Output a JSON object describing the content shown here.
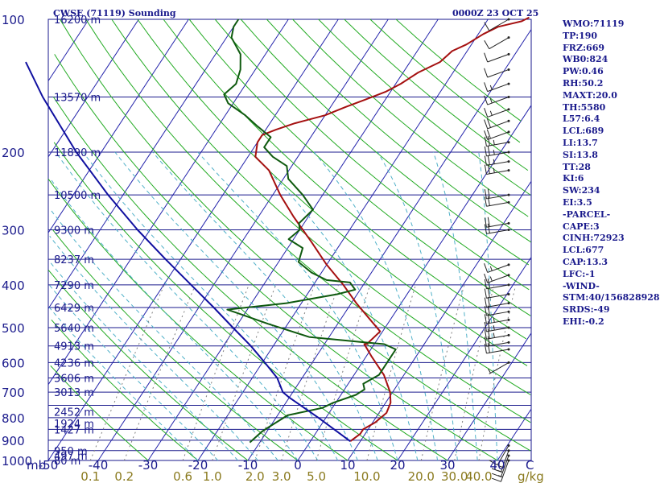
{
  "header": {
    "station": "CWSE (71119) Sounding",
    "timestamp": "0000Z 23 OCT 25"
  },
  "indices": [
    "WMO:71119",
    "TP:190",
    "FRZ:669",
    "WB0:824",
    "PW:0.46",
    "RH:50.2",
    "MAXT:20.0",
    "TH:5580",
    "L57:6.4",
    "LCL:689",
    "LI:13.7",
    "SI:13.8",
    "TT:28",
    "KI:6",
    "SW:234",
    "EI:3.5",
    "-PARCEL-",
    "CAPE:3",
    "CINH:72923",
    "LCL:677",
    "CAP:13.3",
    "LFC:-1",
    "-WIND-",
    "STM:40/156828928",
    "SRDS:-49",
    "EHI:-0.2"
  ],
  "colors": {
    "frame": "#1a1a8c",
    "isobar": "#1a1a8c",
    "isotherm": "#2222aa",
    "dry_adiabat": "#22aa22",
    "moist_adiabat": "#4fb0c8",
    "mixing_ratio": "#808080",
    "temperature": "#a51010",
    "dewpoint": "#0f5a0f",
    "parcel": "#1010a0",
    "wind": "#222222"
  },
  "chart_data": {
    "type": "line",
    "title": "CWSE (71119) Sounding",
    "subtitle": "0000Z 23 OCT 25",
    "xlabel": "C",
    "ylabel": "mb",
    "xlim": [
      -50,
      50
    ],
    "ylim": [
      1000,
      100
    ],
    "y_scale": "log-pressure",
    "skew": "skew-T",
    "y_ticks": [
      {
        "p": 100,
        "label": "100"
      },
      {
        "p": 200,
        "label": "200"
      },
      {
        "p": 300,
        "label": "300"
      },
      {
        "p": 400,
        "label": "400"
      },
      {
        "p": 500,
        "label": "500"
      },
      {
        "p": 600,
        "label": "600"
      },
      {
        "p": 700,
        "label": "700"
      },
      {
        "p": 800,
        "label": "800"
      },
      {
        "p": 900,
        "label": "900"
      },
      {
        "p": 1000,
        "label": "1000"
      }
    ],
    "x_ticks": [
      -50,
      -40,
      -30,
      -20,
      -10,
      0,
      10,
      20,
      30,
      40
    ],
    "x_tick_labels": [
      "-50",
      "-40",
      "-30",
      "-20",
      "-10",
      "0",
      "10",
      "20",
      "30",
      "40"
    ],
    "mb_label": "mb",
    "mixing_ratio_labels": [
      {
        "w": 0.1,
        "label": "0.1"
      },
      {
        "w": 0.2,
        "label": "0.2"
      },
      {
        "w": 0.6,
        "label": "0.6"
      },
      {
        "w": 1.0,
        "label": "1.0"
      },
      {
        "w": 2.0,
        "label": "2.0"
      },
      {
        "w": 3.0,
        "label": "3.0"
      },
      {
        "w": 5.0,
        "label": "5.0"
      },
      {
        "w": 10.0,
        "label": "10.0"
      },
      {
        "w": 20.0,
        "label": "20.0"
      },
      {
        "w": 30.0,
        "label": "30.0"
      },
      {
        "w": 40.0,
        "label": "40.0"
      }
    ],
    "mixing_ratio_unit": "g/kg",
    "heights": [
      {
        "p": 1000,
        "label": "80 m"
      },
      {
        "p": 975,
        "label": "497 m"
      },
      {
        "p": 950,
        "label": "950 m"
      },
      {
        "p": 850,
        "label": "1427 m"
      },
      {
        "p": 825,
        "label": "1924 m"
      },
      {
        "p": 775,
        "label": "2452 m"
      },
      {
        "p": 700,
        "label": "3013 m"
      },
      {
        "p": 650,
        "label": "3606 m"
      },
      {
        "p": 600,
        "label": "4236 m"
      },
      {
        "p": 550,
        "label": "4913 m"
      },
      {
        "p": 500,
        "label": "5640 m"
      },
      {
        "p": 450,
        "label": "6429 m"
      },
      {
        "p": 400,
        "label": "7290 m"
      },
      {
        "p": 350,
        "label": "8237 m"
      },
      {
        "p": 300,
        "label": "9300 m"
      },
      {
        "p": 250,
        "label": "10500 m"
      },
      {
        "p": 200,
        "label": "11890 m"
      },
      {
        "p": 150,
        "label": "13570 m"
      },
      {
        "p": 100,
        "label": "16200 m"
      }
    ],
    "series": [
      {
        "key": "temperature",
        "points": [
          [
            905,
            8.0
          ],
          [
            870,
            9.0
          ],
          [
            850,
            9.0
          ],
          [
            820,
            10.5
          ],
          [
            780,
            11.5
          ],
          [
            740,
            11.0
          ],
          [
            700,
            9.5
          ],
          [
            640,
            6.0
          ],
          [
            580,
            1.0
          ],
          [
            545,
            -2.0
          ],
          [
            545,
            -1.5
          ],
          [
            510,
            -0.5
          ],
          [
            480,
            -4.0
          ],
          [
            440,
            -9.0
          ],
          [
            400,
            -14.0
          ],
          [
            360,
            -20.0
          ],
          [
            320,
            -26.0
          ],
          [
            280,
            -33.0
          ],
          [
            250,
            -38.5
          ],
          [
            220,
            -44.0
          ],
          [
            205,
            -48.5
          ],
          [
            190,
            -50.0
          ],
          [
            183,
            -50.0
          ],
          [
            178,
            -48.0
          ],
          [
            172,
            -45.0
          ],
          [
            165,
            -40.0
          ],
          [
            158,
            -37.0
          ],
          [
            152,
            -34.0
          ],
          [
            146,
            -31.0
          ],
          [
            140,
            -29.0
          ],
          [
            132,
            -27.0
          ],
          [
            125,
            -24.0
          ],
          [
            118,
            -23.0
          ],
          [
            114,
            -21.0
          ],
          [
            108,
            -19.0
          ],
          [
            104,
            -17.0
          ],
          [
            101,
            -13.0
          ],
          [
            99,
            -12.0
          ]
        ]
      },
      {
        "key": "dewpoint",
        "points": [
          [
            910,
            -12.0
          ],
          [
            860,
            -11.0
          ],
          [
            835,
            -10.0
          ],
          [
            790,
            -8.0
          ],
          [
            760,
            -2.0
          ],
          [
            740,
            -0.5
          ],
          [
            710,
            3.0
          ],
          [
            690,
            4.0
          ],
          [
            670,
            3.0
          ],
          [
            640,
            5.0
          ],
          [
            600,
            5.0
          ],
          [
            560,
            5.0
          ],
          [
            545,
            2.0
          ],
          [
            540,
            -2.0
          ],
          [
            525,
            -14.0
          ],
          [
            490,
            -24.0
          ],
          [
            465,
            -31.0
          ],
          [
            455,
            -34.0
          ],
          [
            440,
            -23.0
          ],
          [
            420,
            -14.0
          ],
          [
            410,
            -11.0
          ],
          [
            395,
            -13.0
          ],
          [
            390,
            -18.0
          ],
          [
            375,
            -22.0
          ],
          [
            355,
            -26.0
          ],
          [
            330,
            -27.0
          ],
          [
            315,
            -31.0
          ],
          [
            300,
            -30.0
          ],
          [
            290,
            -31.0
          ],
          [
            270,
            -30.0
          ],
          [
            250,
            -34.0
          ],
          [
            230,
            -39.0
          ],
          [
            215,
            -41.0
          ],
          [
            205,
            -45.0
          ],
          [
            195,
            -48.0
          ],
          [
            185,
            -48.0
          ],
          [
            175,
            -52.0
          ],
          [
            165,
            -56.0
          ],
          [
            155,
            -61.0
          ],
          [
            148,
            -63.0
          ],
          [
            140,
            -62.0
          ],
          [
            130,
            -63.0
          ],
          [
            120,
            -65.0
          ],
          [
            110,
            -69.0
          ],
          [
            104,
            -70.0
          ],
          [
            100,
            -70.0
          ]
        ]
      },
      {
        "key": "parcel",
        "points": [
          [
            905,
            8.0
          ],
          [
            800,
            -1.5
          ],
          [
            720,
            -10.0
          ],
          [
            700,
            -12.0
          ],
          [
            650,
            -15.0
          ],
          [
            600,
            -19.5
          ],
          [
            550,
            -24.5
          ],
          [
            500,
            -30.5
          ],
          [
            450,
            -37.0
          ],
          [
            400,
            -44.5
          ],
          [
            350,
            -53.0
          ],
          [
            300,
            -62.5
          ],
          [
            250,
            -73.0
          ],
          [
            200,
            -85.0
          ],
          [
            150,
            -99.0
          ],
          [
            125,
            -107.0
          ]
        ]
      }
    ],
    "wind_barbs": [
      {
        "p": 1000,
        "dir": 200,
        "kt": 15
      },
      {
        "p": 975,
        "dir": 200,
        "kt": 15
      },
      {
        "p": 950,
        "dir": 200,
        "kt": 15
      },
      {
        "p": 925,
        "dir": 210,
        "kt": 10
      },
      {
        "p": 600,
        "dir": 240,
        "kt": 5
      },
      {
        "p": 560,
        "dir": 260,
        "kt": 20
      },
      {
        "p": 540,
        "dir": 260,
        "kt": 20
      },
      {
        "p": 520,
        "dir": 260,
        "kt": 25
      },
      {
        "p": 500,
        "dir": 260,
        "kt": 25
      },
      {
        "p": 480,
        "dir": 260,
        "kt": 25
      },
      {
        "p": 460,
        "dir": 260,
        "kt": 20
      },
      {
        "p": 440,
        "dir": 260,
        "kt": 20
      },
      {
        "p": 420,
        "dir": 260,
        "kt": 20
      },
      {
        "p": 400,
        "dir": 260,
        "kt": 20
      },
      {
        "p": 380,
        "dir": 250,
        "kt": 15
      },
      {
        "p": 360,
        "dir": 250,
        "kt": 15
      },
      {
        "p": 300,
        "dir": 260,
        "kt": 20
      },
      {
        "p": 290,
        "dir": 260,
        "kt": 20
      },
      {
        "p": 260,
        "dir": 260,
        "kt": 20
      },
      {
        "p": 250,
        "dir": 260,
        "kt": 20
      },
      {
        "p": 220,
        "dir": 260,
        "kt": 25
      },
      {
        "p": 210,
        "dir": 260,
        "kt": 25
      },
      {
        "p": 200,
        "dir": 260,
        "kt": 25
      },
      {
        "p": 190,
        "dir": 260,
        "kt": 25
      },
      {
        "p": 180,
        "dir": 250,
        "kt": 20
      },
      {
        "p": 170,
        "dir": 250,
        "kt": 20
      },
      {
        "p": 160,
        "dir": 250,
        "kt": 15
      },
      {
        "p": 150,
        "dir": 250,
        "kt": 15
      },
      {
        "p": 140,
        "dir": 250,
        "kt": 15
      },
      {
        "p": 130,
        "dir": 250,
        "kt": 10
      },
      {
        "p": 120,
        "dir": 250,
        "kt": 10
      },
      {
        "p": 110,
        "dir": 240,
        "kt": 10
      },
      {
        "p": 100,
        "dir": 240,
        "kt": 10
      }
    ]
  }
}
